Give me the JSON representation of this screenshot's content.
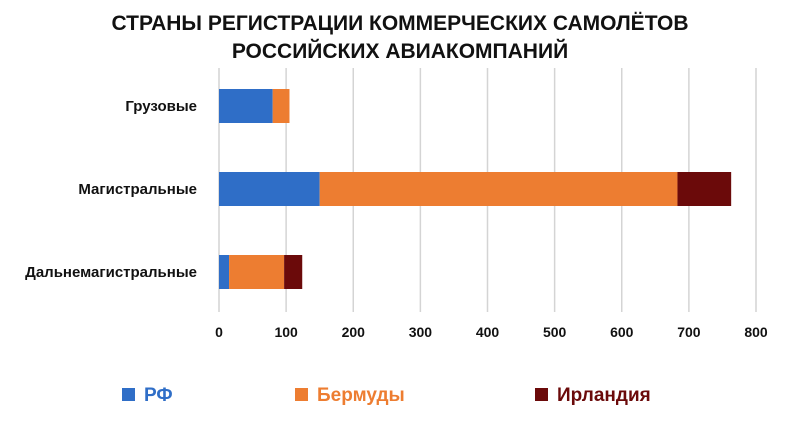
{
  "chart_data": {
    "type": "bar",
    "orientation": "horizontal",
    "stacked": true,
    "title_lines": [
      "СТРАНЫ РЕГИСТРАЦИИ КОММЕРЧЕСКИХ САМОЛЁТОВ",
      "РОССИЙСКИХ АВИАКОМПАНИЙ"
    ],
    "categories": [
      "Грузовые",
      "Магистральные",
      "Дальнемагистральные"
    ],
    "series": [
      {
        "name": "РФ",
        "color": "#2f6ec7",
        "values": [
          80,
          150,
          15
        ]
      },
      {
        "name": "Бермуды",
        "color": "#ed7d31",
        "values": [
          25,
          533,
          82
        ]
      },
      {
        "name": "Ирландия",
        "color": "#6b0a0a",
        "values": [
          0,
          80,
          27
        ]
      }
    ],
    "xlim": [
      0,
      800
    ],
    "xticks": [
      "0",
      "100",
      "200",
      "300",
      "400",
      "500",
      "600",
      "700",
      "800"
    ],
    "grid": true,
    "legend_position": "bottom"
  }
}
